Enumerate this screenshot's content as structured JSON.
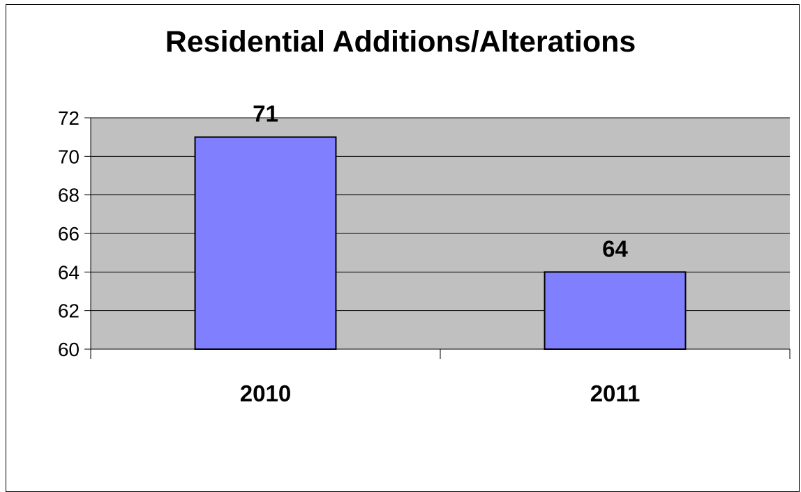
{
  "chart_data": {
    "type": "bar",
    "title": "Residential Additions/Alterations",
    "categories": [
      "2010",
      "2011"
    ],
    "values": [
      71,
      64
    ],
    "xlabel": "",
    "ylabel": "",
    "ylim": [
      60,
      72
    ],
    "yticks": [
      60,
      62,
      64,
      66,
      68,
      70,
      72
    ],
    "grid": true,
    "legend": "none",
    "data_labels": true,
    "colors": {
      "bar": "#8080ff",
      "plot_background": "#c0c0c0",
      "grid": "#000000"
    }
  }
}
